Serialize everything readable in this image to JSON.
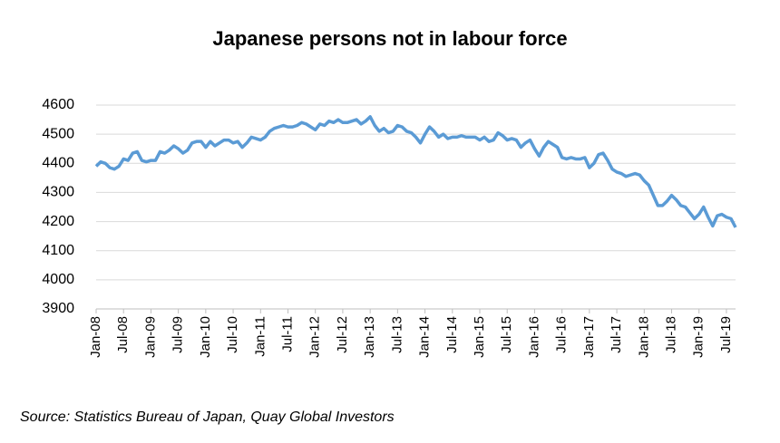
{
  "chart_data": {
    "type": "line",
    "title": "Japanese persons not in labour force",
    "source": "Source: Statistics Bureau of Japan, Quay Global Investors",
    "categories": [
      "Jan-08",
      null,
      null,
      null,
      null,
      null,
      "Jul-08",
      null,
      null,
      null,
      null,
      null,
      "Jan-09",
      null,
      null,
      null,
      null,
      null,
      "Jul-09",
      null,
      null,
      null,
      null,
      null,
      "Jan-10",
      null,
      null,
      null,
      null,
      null,
      "Jul-10",
      null,
      null,
      null,
      null,
      null,
      "Jan-11",
      null,
      null,
      null,
      null,
      null,
      "Jul-11",
      null,
      null,
      null,
      null,
      null,
      "Jan-12",
      null,
      null,
      null,
      null,
      null,
      "Jul-12",
      null,
      null,
      null,
      null,
      null,
      "Jan-13",
      null,
      null,
      null,
      null,
      null,
      "Jul-13",
      null,
      null,
      null,
      null,
      null,
      "Jan-14",
      null,
      null,
      null,
      null,
      null,
      "Jul-14",
      null,
      null,
      null,
      null,
      null,
      "Jan-15",
      null,
      null,
      null,
      null,
      null,
      "Jul-15",
      null,
      null,
      null,
      null,
      null,
      "Jan-16",
      null,
      null,
      null,
      null,
      null,
      "Jul-16",
      null,
      null,
      null,
      null,
      null,
      "Jan-17",
      null,
      null,
      null,
      null,
      null,
      "Jul-17",
      null,
      null,
      null,
      null,
      null,
      "Jan-18",
      null,
      null,
      null,
      null,
      null,
      "Jul-18",
      null,
      null,
      null,
      null,
      null,
      "Jan-19",
      null,
      null,
      null,
      null,
      null,
      "Jul-19",
      null,
      null
    ],
    "values": [
      4390,
      4405,
      4400,
      4385,
      4380,
      4390,
      4415,
      4410,
      4435,
      4440,
      4410,
      4405,
      4410,
      4410,
      4440,
      4435,
      4445,
      4460,
      4450,
      4435,
      4445,
      4470,
      4475,
      4475,
      4455,
      4475,
      4460,
      4470,
      4480,
      4480,
      4470,
      4475,
      4455,
      4470,
      4490,
      4485,
      4480,
      4490,
      4510,
      4520,
      4525,
      4530,
      4525,
      4525,
      4530,
      4540,
      4535,
      4525,
      4515,
      4535,
      4530,
      4545,
      4540,
      4550,
      4540,
      4540,
      4545,
      4550,
      4535,
      4545,
      4560,
      4530,
      4510,
      4520,
      4505,
      4510,
      4530,
      4525,
      4510,
      4505,
      4490,
      4470,
      4500,
      4525,
      4510,
      4490,
      4500,
      4485,
      4490,
      4490,
      4495,
      4490,
      4490,
      4490,
      4480,
      4490,
      4475,
      4480,
      4505,
      4495,
      4480,
      4485,
      4480,
      4455,
      4470,
      4480,
      4450,
      4425,
      4455,
      4475,
      4465,
      4455,
      4420,
      4415,
      4420,
      4415,
      4415,
      4420,
      4385,
      4400,
      4430,
      4435,
      4410,
      4380,
      4370,
      4365,
      4355,
      4360,
      4365,
      4360,
      4340,
      4325,
      4290,
      4255,
      4255,
      4270,
      4290,
      4275,
      4255,
      4250,
      4230,
      4210,
      4225,
      4250,
      4215,
      4185,
      4220,
      4225,
      4215,
      4210,
      4180
    ],
    "color": "#5b9bd5",
    "ylim": [
      3900,
      4600
    ],
    "yticks": [
      3900,
      4000,
      4100,
      4200,
      4300,
      4400,
      4500,
      4600
    ],
    "grid": true
  }
}
